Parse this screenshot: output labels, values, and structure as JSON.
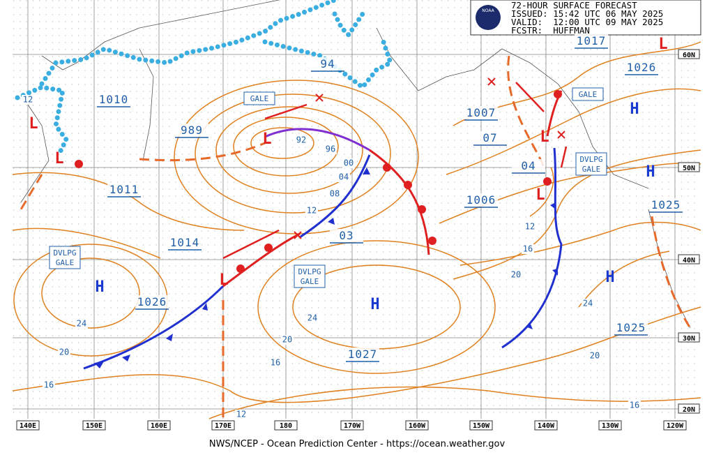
{
  "header": {
    "logo": "NOAA",
    "lines": [
      "72-HOUR SURFACE FORECAST",
      "ISSUED: 15:42 UTC 06 MAY 2025",
      "VALID:  12:00 UTC 09 MAY 2025",
      "FCSTR:  HUFFMAN"
    ]
  },
  "longitude_labels": [
    "140E",
    "150E",
    "160E",
    "170E",
    "180",
    "170W",
    "160W",
    "150W",
    "140W",
    "130W",
    "120W"
  ],
  "latitude_labels": [
    "60N",
    "50N",
    "40N",
    "30N",
    "20N"
  ],
  "lows": [
    "L",
    "L",
    "L",
    "L",
    "L",
    "L",
    "L"
  ],
  "highs": [
    "H",
    "H",
    "H",
    "H",
    "H"
  ],
  "central_pressures": [
    "1010",
    "989",
    "1011",
    "1014",
    "1026",
    "94",
    "1007",
    "07",
    "04",
    "1006",
    "03",
    "1027",
    "1017",
    "1026",
    "1025",
    "1025"
  ],
  "isobar_labels": [
    "12",
    "92",
    "96",
    "00",
    "04",
    "08",
    "12",
    "12",
    "16",
    "20",
    "24",
    "24",
    "20",
    "20",
    "24",
    "16",
    "16",
    "20",
    "16",
    "12"
  ],
  "warnings": [
    [
      "GALE"
    ],
    [
      "GALE"
    ],
    [
      "DVLPG",
      "GALE"
    ],
    [
      "DVLPG",
      "GALE"
    ],
    [
      "DVLPG",
      "GALE"
    ]
  ],
  "footer": "NWS/NCEP - Ocean Prediction Center - https://ocean.weather.gov"
}
